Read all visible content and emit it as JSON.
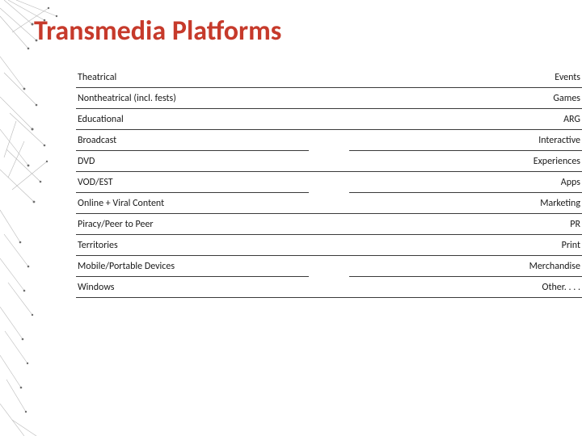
{
  "title": "Transmedia Platforms",
  "title_color": "#c63a2b",
  "title_fontsize": 34,
  "row_fontsize": 12,
  "row_border_color": "#3a3a3a",
  "background_color": "#ffffff",
  "rows": [
    {
      "left": "Theatrical",
      "right": "Events",
      "split": false
    },
    {
      "left": "Nontheatrical (incl. fests)",
      "right": "Games",
      "split": false
    },
    {
      "left": "Educational",
      "right": "ARG",
      "split": false
    },
    {
      "left": "Broadcast",
      "right": "Interactive",
      "split": true
    },
    {
      "left": "DVD",
      "right": "Experiences",
      "split": false
    },
    {
      "left": "VOD/EST",
      "right": "Apps",
      "split": true
    },
    {
      "left": "Online + Viral Content",
      "right": "Marketing",
      "split": false
    },
    {
      "left": "Piracy/Peer to Peer",
      "right": "PR",
      "split": false
    },
    {
      "left": "Territories",
      "right": "Print",
      "split": false
    },
    {
      "left": "Mobile/Portable Devices",
      "right": "Merchandise",
      "split": true
    },
    {
      "left": "Windows",
      "right": "Other. . . .",
      "split": false
    }
  ],
  "decoration": {
    "stroke": "#b9b9b9",
    "node_fill": "#6f6f6f"
  }
}
